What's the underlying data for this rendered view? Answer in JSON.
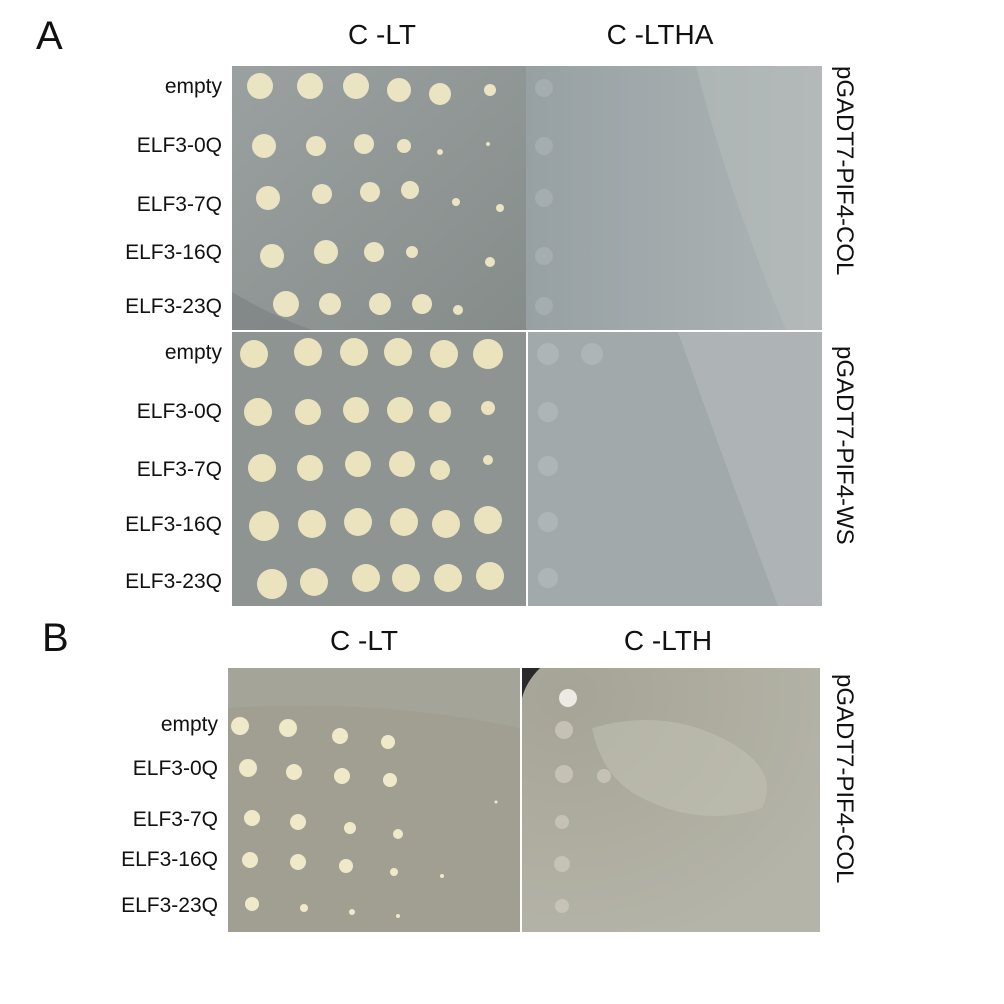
{
  "panels": [
    {
      "letter": "A",
      "columns": [
        "C -LT",
        "C -LTHA"
      ],
      "blocks": [
        {
          "construct": "pGADT7-PIF4-COL",
          "rows": [
            "empty",
            "ELF3-0Q",
            "ELF3-7Q",
            "ELF3-16Q",
            "ELF3-23Q"
          ]
        },
        {
          "construct": "pGADT7-PIF4-WS",
          "rows": [
            "empty",
            "ELF3-0Q",
            "ELF3-7Q",
            "ELF3-16Q",
            "ELF3-23Q"
          ]
        }
      ]
    },
    {
      "letter": "B",
      "columns": [
        "C -LT",
        "C -LTH"
      ],
      "blocks": [
        {
          "construct": "pGADT7-PIF4-COL",
          "rows": [
            "empty",
            "ELF3-0Q",
            "ELF3-7Q",
            "ELF3-16Q",
            "ELF3-23Q"
          ]
        }
      ]
    }
  ],
  "colors": {
    "plate_lt": "#8f9694",
    "plate_selective": "#a3aaac",
    "colony": "#e9e2bf",
    "colony_faint": "#b6bdbf"
  }
}
